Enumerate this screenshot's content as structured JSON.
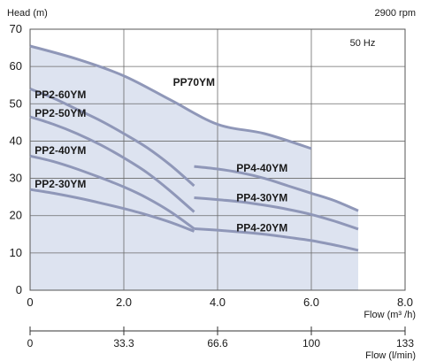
{
  "chart_data": {
    "type": "line",
    "top_left_label": "Head  (m)",
    "top_right_label": "2900  rpm",
    "corner_label": "50   Hz",
    "y_axis": {
      "ticks": [
        0,
        10,
        20,
        30,
        40,
        50,
        60,
        70
      ],
      "range": [
        0,
        70
      ]
    },
    "x_axis_flow_m3h": {
      "ticks": [
        "0",
        "2.0",
        "4.0",
        "6.0",
        "8.0"
      ],
      "range": [
        0,
        8
      ],
      "label": "Flow   (m³ /h)"
    },
    "x_axis_flow_lmin": {
      "ticks": [
        "0",
        "33.3",
        "66.6",
        "100",
        "133"
      ],
      "label": "Flow   (l/min)"
    },
    "grid": true,
    "shaded_region_color": "#dde3f0",
    "curve_color": "#8f97b8",
    "series": [
      {
        "name": "PP70YM",
        "label_at": [
          3.05,
          54.8
        ],
        "points": [
          [
            0,
            65.5
          ],
          [
            1,
            62
          ],
          [
            2,
            57.5
          ],
          [
            3,
            51
          ],
          [
            4,
            44.5
          ],
          [
            5,
            42
          ],
          [
            6,
            38
          ]
        ]
      },
      {
        "name": "PP2-60YM",
        "label_at": [
          0.1,
          51.5
        ],
        "points": [
          [
            0,
            54
          ],
          [
            0.5,
            51.5
          ],
          [
            1,
            48.5
          ],
          [
            1.5,
            45.5
          ],
          [
            2,
            42
          ],
          [
            2.5,
            38.2
          ],
          [
            3,
            33.5
          ],
          [
            3.5,
            28
          ]
        ]
      },
      {
        "name": "PP2-50YM",
        "label_at": [
          0.1,
          46.5
        ],
        "points": [
          [
            0,
            46.5
          ],
          [
            0.5,
            44.5
          ],
          [
            1,
            42
          ],
          [
            1.5,
            39
          ],
          [
            2,
            35.5
          ],
          [
            2.5,
            31.5
          ],
          [
            3,
            26.5
          ],
          [
            3.5,
            21
          ]
        ]
      },
      {
        "name": "PP2-40YM",
        "label_at": [
          0.1,
          36.5
        ],
        "points": [
          [
            0,
            36
          ],
          [
            0.5,
            34.5
          ],
          [
            1,
            32.5
          ],
          [
            1.5,
            30.2
          ],
          [
            2,
            27.7
          ],
          [
            2.5,
            24.7
          ],
          [
            3,
            21
          ],
          [
            3.5,
            16.5
          ]
        ]
      },
      {
        "name": "PP2-30YM",
        "label_at": [
          0.1,
          27.5
        ],
        "points": [
          [
            0,
            27
          ],
          [
            0.5,
            26
          ],
          [
            1,
            24.8
          ],
          [
            1.5,
            23.4
          ],
          [
            2,
            21.9
          ],
          [
            2.5,
            20.2
          ],
          [
            3,
            18.2
          ],
          [
            3.5,
            15.8
          ]
        ]
      },
      {
        "name": "PP4-40YM",
        "label_at": [
          4.4,
          31.8
        ],
        "points": [
          [
            3.5,
            33.2
          ],
          [
            4,
            32.5
          ],
          [
            4.5,
            31.5
          ],
          [
            5,
            30
          ],
          [
            5.5,
            28
          ],
          [
            6,
            26
          ],
          [
            6.5,
            24
          ],
          [
            7,
            21.3
          ]
        ]
      },
      {
        "name": "PP4-30YM",
        "label_at": [
          4.4,
          23.8
        ],
        "points": [
          [
            3.5,
            24.8
          ],
          [
            4,
            24.3
          ],
          [
            4.5,
            23.7
          ],
          [
            5,
            22.8
          ],
          [
            5.5,
            21.7
          ],
          [
            6,
            20.3
          ],
          [
            6.5,
            18.5
          ],
          [
            7,
            16.4
          ]
        ]
      },
      {
        "name": "PP4-20YM",
        "label_at": [
          4.4,
          15.8
        ],
        "points": [
          [
            3.5,
            16.5
          ],
          [
            4,
            16.1
          ],
          [
            4.5,
            15.6
          ],
          [
            5,
            15
          ],
          [
            5.5,
            14.2
          ],
          [
            6,
            13.3
          ],
          [
            6.5,
            12.1
          ],
          [
            7,
            10.7
          ]
        ]
      }
    ]
  }
}
